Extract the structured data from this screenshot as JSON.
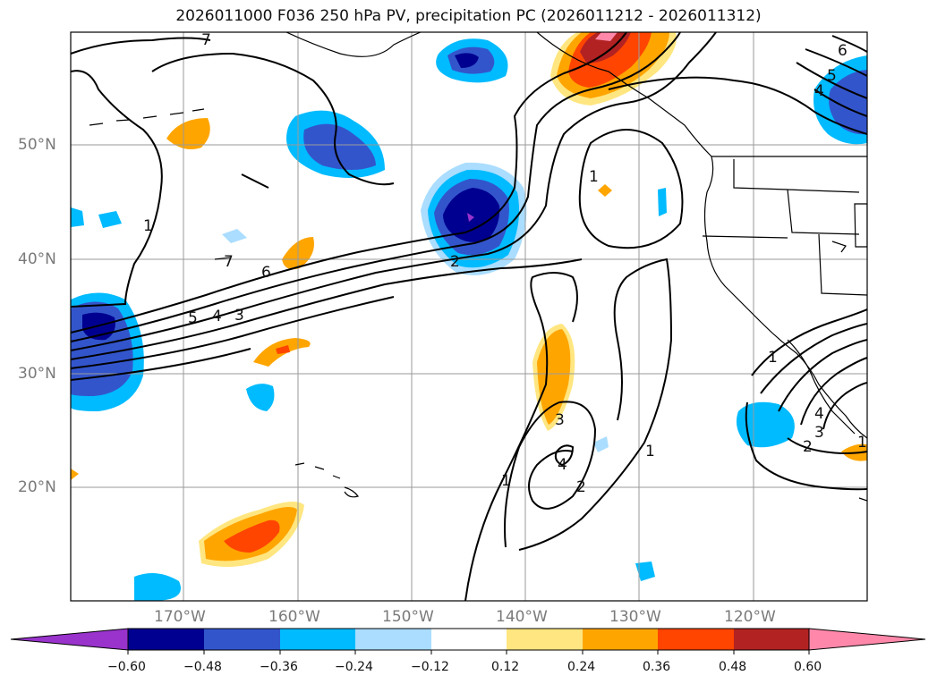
{
  "title": "2026011000 F036 250 hPa PV, precipitation PC (2026011212 - 2026011312)",
  "map": {
    "lon_range": [
      -180,
      -110
    ],
    "lat_range": [
      10,
      60
    ],
    "lat_labels": [
      "50°N",
      "40°N",
      "30°N",
      "20°N"
    ],
    "lon_labels": [
      "170°W",
      "160°W",
      "150°W",
      "140°W",
      "130°W",
      "120°W"
    ],
    "contour_labels": [
      "7",
      "7",
      "6",
      "5",
      "4",
      "3",
      "1",
      "2",
      "1",
      "3",
      "4",
      "2",
      "1",
      "1",
      "5",
      "4",
      "6",
      "1",
      "4",
      "3",
      "2",
      "1"
    ]
  },
  "colorbar": {
    "ticks": [
      "−0.60",
      "−0.48",
      "−0.36",
      "−0.24",
      "−0.12",
      "0.12",
      "0.24",
      "0.36",
      "0.48",
      "0.60"
    ],
    "colors": [
      "#9933cc",
      "#000090",
      "#3355cc",
      "#00bbff",
      "#aaddff",
      "#ffffff",
      "#ffe680",
      "#ffa500",
      "#ff4500",
      "#b22222",
      "#ff88aa"
    ]
  }
}
